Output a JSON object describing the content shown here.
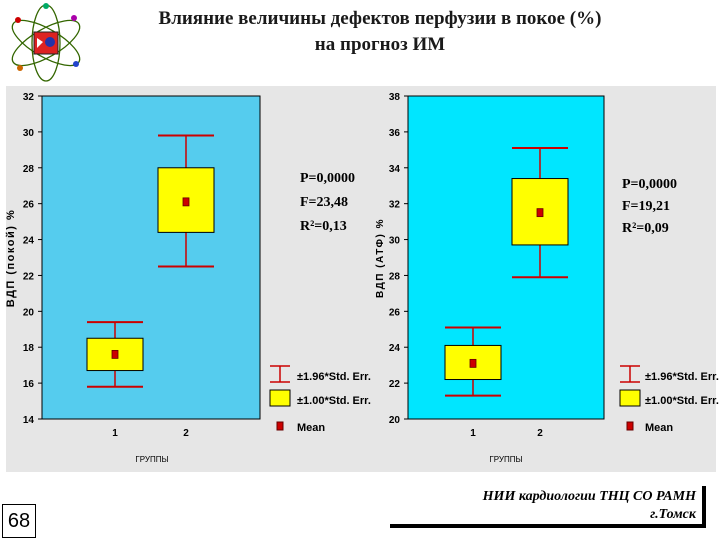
{
  "title": {
    "line1": "Влияние величины дефектов перфузии в покое (%)",
    "line2": "на прогноз ИМ"
  },
  "page_number": "68",
  "footer": {
    "line1": "НИИ кардиологии ТНЦ СО РАМН",
    "line2": "г.Томск"
  },
  "colors": {
    "left_plot_bg": "#55ccee",
    "right_plot_bg": "#00e6ff",
    "box_fill": "#ffff00",
    "whisker": "#cc0000",
    "mean_marker": "#cc0000"
  },
  "legend": {
    "whisker_label": "±1.96*Std. Err.",
    "box_label": "±1.00*Std. Err.",
    "mean_label": "Mean"
  },
  "chart_data": [
    {
      "type": "box",
      "ylabel": "ВДП (покой) %",
      "xlabel": "ГРУППЫ",
      "categories": [
        "1",
        "2"
      ],
      "ylim": [
        14,
        32
      ],
      "yticks": [
        "14",
        "16",
        "18",
        "20",
        "22",
        "24",
        "26",
        "28",
        "30",
        "32"
      ],
      "groups": [
        {
          "category": "1",
          "mean": 17.6,
          "se_low": 16.7,
          "se_high": 18.5,
          "ci_low": 15.8,
          "ci_high": 19.4
        },
        {
          "category": "2",
          "mean": 26.1,
          "se_low": 24.4,
          "se_high": 28.0,
          "ci_low": 22.5,
          "ci_high": 29.8
        }
      ],
      "stats": [
        "P=0,0000",
        "F=23,48",
        "R²=0,13"
      ]
    },
    {
      "type": "box",
      "ylabel": "ВДП (АТФ) %",
      "xlabel": "ГРУППЫ",
      "categories": [
        "1",
        "2"
      ],
      "ylim": [
        20,
        38
      ],
      "yticks": [
        "20",
        "22",
        "24",
        "26",
        "28",
        "30",
        "32",
        "34",
        "36",
        "38"
      ],
      "groups": [
        {
          "category": "1",
          "mean": 23.1,
          "se_low": 22.2,
          "se_high": 24.1,
          "ci_low": 21.3,
          "ci_high": 25.1
        },
        {
          "category": "2",
          "mean": 31.5,
          "se_low": 29.7,
          "se_high": 33.4,
          "ci_low": 27.9,
          "ci_high": 35.1
        }
      ],
      "stats": [
        "P=0,0000",
        "F=19,21",
        "R²=0,09"
      ]
    }
  ]
}
